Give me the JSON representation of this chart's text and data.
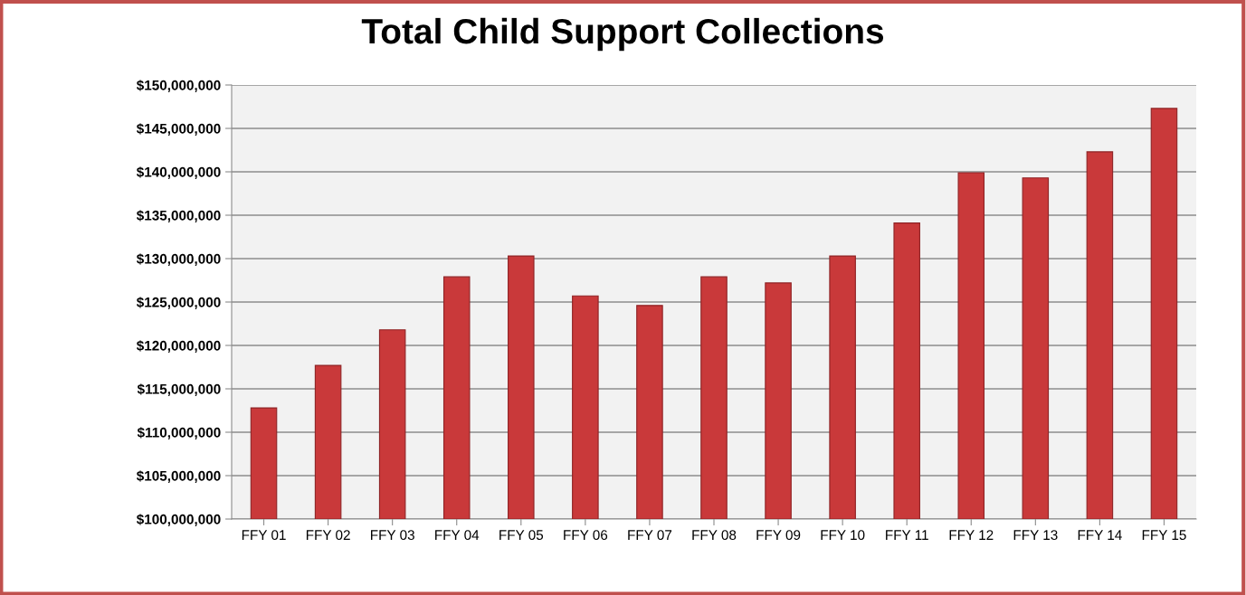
{
  "chart_data": {
    "type": "bar",
    "title": "Total Child Support Collections",
    "categories": [
      "FFY 01",
      "FFY 02",
      "FFY 03",
      "FFY 04",
      "FFY 05",
      "FFY 06",
      "FFY 07",
      "FFY 08",
      "FFY 09",
      "FFY 10",
      "FFY 11",
      "FFY 12",
      "FFY 13",
      "FFY 14",
      "FFY 15"
    ],
    "values": [
      112800000,
      117700000,
      121800000,
      127900000,
      130300000,
      125700000,
      124600000,
      127900000,
      127200000,
      130300000,
      134100000,
      139900000,
      139300000,
      142300000,
      147300000
    ],
    "color": "#c9393a",
    "ylim": [
      100000000,
      150000000
    ],
    "yticks": [
      {
        "value": 100000000,
        "label": "$100,000,000"
      },
      {
        "value": 105000000,
        "label": "$105,000,000"
      },
      {
        "value": 110000000,
        "label": "$110,000,000"
      },
      {
        "value": 115000000,
        "label": "$115,000,000"
      },
      {
        "value": 120000000,
        "label": "$120,000,000"
      },
      {
        "value": 125000000,
        "label": "$125,000,000"
      },
      {
        "value": 130000000,
        "label": "$130,000,000"
      },
      {
        "value": 135000000,
        "label": "$135,000,000"
      },
      {
        "value": 140000000,
        "label": "$140,000,000"
      },
      {
        "value": 145000000,
        "label": "$145,000,000"
      },
      {
        "value": 150000000,
        "label": "$150,000,000"
      }
    ],
    "grid": "y"
  }
}
